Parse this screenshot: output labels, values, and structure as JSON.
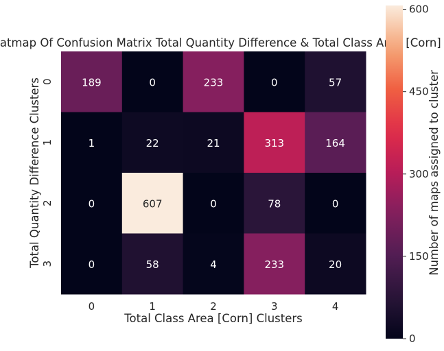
{
  "chart_data": {
    "type": "heatmap",
    "title": "Heatmap Of Confusion Matrix Total Quantity Difference & Total Class Area [Corn]",
    "xlabel": "Total Class Area [Corn] Clusters",
    "ylabel": "Total Quantity Difference Clusters",
    "x_categories": [
      "0",
      "1",
      "2",
      "3",
      "4"
    ],
    "y_categories": [
      "0",
      "1",
      "2",
      "3"
    ],
    "values": [
      [
        189,
        0,
        233,
        0,
        57
      ],
      [
        1,
        22,
        21,
        313,
        164
      ],
      [
        0,
        607,
        0,
        78,
        0
      ],
      [
        0,
        58,
        4,
        233,
        20
      ]
    ],
    "colorbar": {
      "label": "Number of maps assigned to cluster",
      "min": 0,
      "max": 607,
      "ticks": [
        0,
        150,
        300,
        450,
        600
      ],
      "colormap": "rocket"
    },
    "annotations": true,
    "annotation_text_colors": {
      "on_dark": "#ffffff",
      "on_light": "#262626"
    },
    "grid": false
  }
}
